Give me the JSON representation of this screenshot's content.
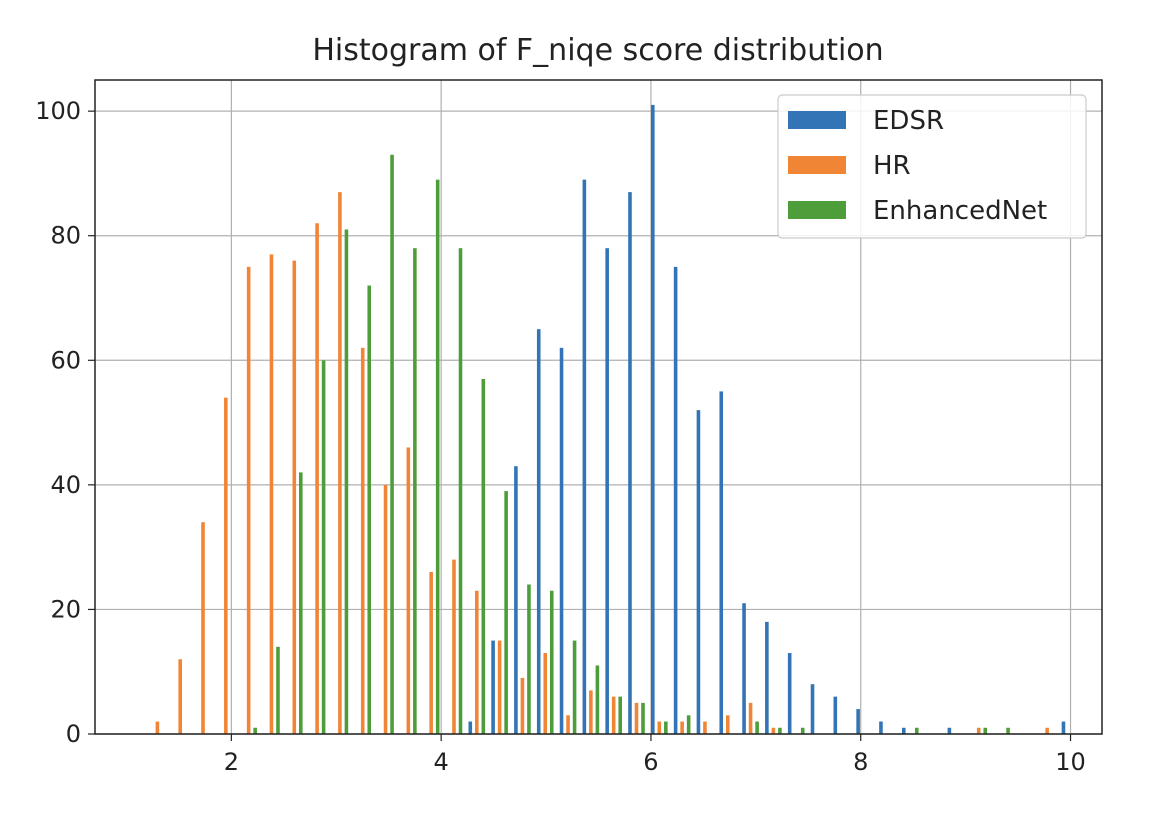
{
  "chart_data": {
    "type": "bar",
    "title": "Histogram of F_niqe score distribution",
    "xlabel": "",
    "ylabel": "",
    "xlim": [
      0.7,
      10.3
    ],
    "ylim": [
      0,
      105
    ],
    "xticks": [
      2,
      4,
      6,
      8,
      10
    ],
    "yticks": [
      0,
      20,
      40,
      60,
      80,
      100
    ],
    "grid": true,
    "legend_position": "top-right",
    "bin_start": 1.2,
    "bin_width": 0.2175,
    "series": [
      {
        "name": "EDSR",
        "color": "#3274b5",
        "values": [
          0,
          0,
          0,
          0,
          0,
          0,
          0,
          0,
          0,
          0,
          0,
          0,
          0,
          0,
          2,
          15,
          43,
          65,
          62,
          89,
          78,
          87,
          101,
          75,
          52,
          55,
          21,
          18,
          13,
          8,
          6,
          4,
          2,
          1,
          0,
          1,
          0,
          0,
          0,
          0,
          2
        ]
      },
      {
        "name": "HR",
        "color": "#f08536",
        "values": [
          2,
          12,
          34,
          54,
          75,
          77,
          76,
          82,
          87,
          62,
          40,
          46,
          26,
          28,
          23,
          15,
          9,
          13,
          3,
          7,
          6,
          5,
          2,
          2,
          2,
          3,
          5,
          1,
          0,
          0,
          0,
          0,
          0,
          0,
          0,
          0,
          1,
          0,
          0,
          1,
          0
        ]
      },
      {
        "name": "EnhancedNet",
        "color": "#4d9e3a",
        "values": [
          0,
          0,
          0,
          0,
          1,
          14,
          42,
          60,
          81,
          72,
          93,
          78,
          89,
          78,
          57,
          39,
          24,
          23,
          15,
          11,
          6,
          5,
          2,
          3,
          0,
          0,
          2,
          1,
          1,
          0,
          0,
          0,
          0,
          1,
          0,
          0,
          1,
          1,
          0,
          0,
          0
        ]
      }
    ]
  }
}
